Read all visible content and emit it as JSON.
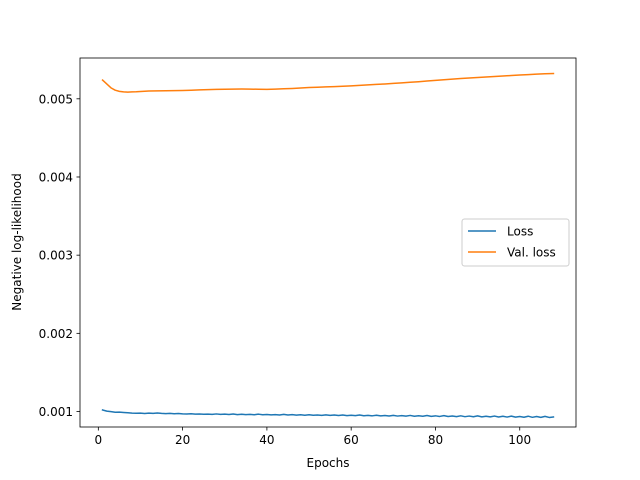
{
  "chart_data": {
    "type": "line",
    "title": "",
    "xlabel": "Epochs",
    "ylabel": "Negative log-likelihood",
    "xlim": [
      -4.35,
      113.35
    ],
    "ylim": [
      0.000802,
      0.005522
    ],
    "xticks": [
      0,
      20,
      40,
      60,
      80,
      100
    ],
    "xtick_labels": [
      "0",
      "20",
      "40",
      "60",
      "80",
      "100"
    ],
    "yticks": [
      0.001,
      0.002,
      0.003,
      0.004,
      0.005
    ],
    "ytick_labels": [
      "0.001",
      "0.002",
      "0.003",
      "0.004",
      "0.005"
    ],
    "grid": false,
    "legend": {
      "placement": "center-right"
    },
    "series": [
      {
        "name": "Loss",
        "color": "#1f77b4",
        "x": [
          1,
          2,
          3,
          4,
          5,
          6,
          7,
          8,
          9,
          10,
          11,
          12,
          13,
          14,
          15,
          16,
          17,
          18,
          19,
          20,
          21,
          22,
          23,
          24,
          25,
          26,
          27,
          28,
          29,
          30,
          31,
          32,
          33,
          34,
          35,
          36,
          37,
          38,
          39,
          40,
          41,
          42,
          43,
          44,
          45,
          46,
          47,
          48,
          49,
          50,
          51,
          52,
          53,
          54,
          55,
          56,
          57,
          58,
          59,
          60,
          61,
          62,
          63,
          64,
          65,
          66,
          67,
          68,
          69,
          70,
          71,
          72,
          73,
          74,
          75,
          76,
          77,
          78,
          79,
          80,
          81,
          82,
          83,
          84,
          85,
          86,
          87,
          88,
          89,
          90,
          91,
          92,
          93,
          94,
          95,
          96,
          97,
          98,
          99,
          100,
          101,
          102,
          103,
          104,
          105,
          106,
          107,
          108
        ],
        "y": [
          0.00102,
          0.001005,
          0.000998,
          0.00099,
          0.000992,
          0.000988,
          0.000984,
          0.00098,
          0.000978,
          0.00098,
          0.000975,
          0.000979,
          0.000977,
          0.000981,
          0.000976,
          0.000973,
          0.000977,
          0.000972,
          0.000974,
          0.00097,
          0.000968,
          0.000972,
          0.000966,
          0.000969,
          0.000965,
          0.000967,
          0.000964,
          0.000969,
          0.000963,
          0.000966,
          0.000962,
          0.000968,
          0.000961,
          0.000965,
          0.00096,
          0.000963,
          0.000959,
          0.000966,
          0.000958,
          0.000962,
          0.000957,
          0.000961,
          0.000956,
          0.000963,
          0.000955,
          0.00096,
          0.000954,
          0.000958,
          0.000953,
          0.000959,
          0.000952,
          0.000956,
          0.000951,
          0.000957,
          0.00095,
          0.000955,
          0.000949,
          0.000956,
          0.000948,
          0.000953,
          0.000947,
          0.000955,
          0.000946,
          0.000951,
          0.000945,
          0.000953,
          0.000944,
          0.000949,
          0.000943,
          0.000951,
          0.000942,
          0.000948,
          0.000941,
          0.00095,
          0.00094,
          0.000946,
          0.000939,
          0.000949,
          0.000938,
          0.000945,
          0.000937,
          0.000947,
          0.000936,
          0.000943,
          0.000935,
          0.000945,
          0.000934,
          0.000942,
          0.000933,
          0.000944,
          0.000932,
          0.00094,
          0.000931,
          0.000942,
          0.00093,
          0.000939,
          0.000929,
          0.000941,
          0.000928,
          0.000937,
          0.000927,
          0.00094,
          0.000926,
          0.000936,
          0.000925,
          0.000938,
          0.000924,
          0.00093
        ]
      },
      {
        "name": "Val. loss",
        "color": "#ff7f0e",
        "x": [
          1,
          2,
          3,
          4,
          5,
          6,
          7,
          8,
          9,
          10,
          12,
          14,
          16,
          18,
          20,
          22,
          24,
          26,
          28,
          30,
          32,
          34,
          36,
          38,
          40,
          42,
          44,
          46,
          48,
          50,
          52,
          54,
          56,
          58,
          60,
          62,
          64,
          66,
          68,
          70,
          72,
          74,
          76,
          78,
          80,
          82,
          84,
          86,
          88,
          90,
          92,
          94,
          96,
          98,
          100,
          102,
          104,
          106,
          108
        ],
        "y": [
          0.00524,
          0.00519,
          0.00514,
          0.00511,
          0.005095,
          0.005088,
          0.005085,
          0.005088,
          0.00509,
          0.005094,
          0.0051,
          0.005102,
          0.005103,
          0.005104,
          0.005106,
          0.00511,
          0.005115,
          0.005118,
          0.005121,
          0.005123,
          0.005124,
          0.005125,
          0.005124,
          0.005122,
          0.005121,
          0.005124,
          0.005128,
          0.005132,
          0.005138,
          0.005144,
          0.005148,
          0.005152,
          0.005156,
          0.00516,
          0.005166,
          0.005172,
          0.005178,
          0.005184,
          0.00519,
          0.005197,
          0.005204,
          0.005211,
          0.005219,
          0.005227,
          0.005236,
          0.005244,
          0.005252,
          0.00526,
          0.005267,
          0.005273,
          0.005279,
          0.005286,
          0.005292,
          0.005298,
          0.005304,
          0.00531,
          0.005316,
          0.00532,
          0.005324
        ]
      }
    ]
  }
}
